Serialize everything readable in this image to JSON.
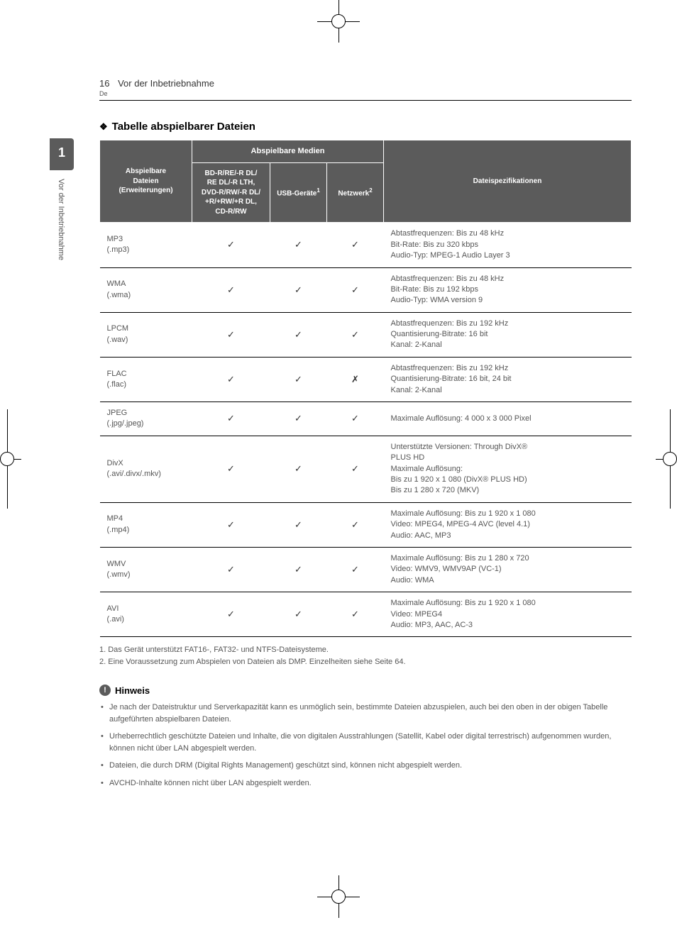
{
  "page": {
    "number": "16",
    "title": "Vor der Inbetriebnahme",
    "lang": "De"
  },
  "sidetab": {
    "number": "1",
    "label": "Vor der Inbetriebnahme"
  },
  "section": {
    "diamond": "❖",
    "title": "Tabelle abspielbarer Dateien"
  },
  "table": {
    "headers": {
      "col1_l1": "Abspielbare",
      "col1_l2": "Dateien",
      "col1_l3": "(Erweiterungen)",
      "group": "Abspielbare Medien",
      "disc_l1": "BD-R/RE/-R DL/",
      "disc_l2": "RE DL/-R LTH,",
      "disc_l3": "DVD-R/RW/-R DL/",
      "disc_l4": "+R/+RW/+R DL,",
      "disc_l5": "CD-R/RW",
      "usb": "USB-Geräte",
      "usb_sup": "1",
      "net": "Netzwerk",
      "net_sup": "2",
      "spec": "Dateispezifikationen"
    },
    "marks": {
      "yes": "✓",
      "no": "✗"
    },
    "rows": [
      {
        "name_l1": "MP3",
        "name_l2": "(.mp3)",
        "disc": "✓",
        "usb": "✓",
        "net": "✓",
        "spec_l1": "Abtastfrequenzen: Bis zu 48 kHz",
        "spec_l2": "Bit-Rate: Bis zu 320 kbps",
        "spec_l3": "Audio-Typ: MPEG-1 Audio Layer 3"
      },
      {
        "name_l1": "WMA",
        "name_l2": "(.wma)",
        "disc": "✓",
        "usb": "✓",
        "net": "✓",
        "spec_l1": "Abtastfrequenzen: Bis zu 48 kHz",
        "spec_l2": "Bit-Rate: Bis zu 192 kbps",
        "spec_l3": "Audio-Typ: WMA version 9"
      },
      {
        "name_l1": "LPCM",
        "name_l2": "(.wav)",
        "disc": "✓",
        "usb": "✓",
        "net": "✓",
        "spec_l1": "Abtastfrequenzen: Bis zu 192 kHz",
        "spec_l2": "Quantisierung-Bitrate: 16 bit",
        "spec_l3": "Kanal: 2-Kanal"
      },
      {
        "name_l1": "FLAC",
        "name_l2": "(.flac)",
        "disc": "✓",
        "usb": "✓",
        "net": "✗",
        "spec_l1": "Abtastfrequenzen: Bis zu 192 kHz",
        "spec_l2": "Quantisierung-Bitrate: 16 bit, 24 bit",
        "spec_l3": "Kanal: 2-Kanal"
      },
      {
        "name_l1": "JPEG",
        "name_l2": "(.jpg/.jpeg)",
        "disc": "✓",
        "usb": "✓",
        "net": "✓",
        "spec_l1": "Maximale Auflösung: 4 000 x 3 000 Pixel",
        "spec_l2": "",
        "spec_l3": ""
      },
      {
        "name_l1": "DivX",
        "name_l2": "(.avi/.divx/.mkv)",
        "disc": "✓",
        "usb": "✓",
        "net": "✓",
        "spec_l1": "Unterstützte Versionen: Through DivX®",
        "spec_l2": "PLUS HD",
        "spec_l3": "Maximale Auflösung:",
        "spec_l4": "Bis zu 1 920 x 1 080 (DivX® PLUS HD)",
        "spec_l5": "Bis zu 1 280 x 720 (MKV)"
      },
      {
        "name_l1": "MP4",
        "name_l2": "(.mp4)",
        "disc": "✓",
        "usb": "✓",
        "net": "✓",
        "spec_l1": "Maximale Auflösung: Bis zu 1 920 x 1 080",
        "spec_l2": "Video: MPEG4, MPEG-4 AVC (level 4.1)",
        "spec_l3": "Audio: AAC, MP3"
      },
      {
        "name_l1": "WMV",
        "name_l2": "(.wmv)",
        "disc": "✓",
        "usb": "✓",
        "net": "✓",
        "spec_l1": "Maximale Auflösung: Bis zu 1 280 x 720",
        "spec_l2": "Video: WMV9, WMV9AP (VC-1)",
        "spec_l3": "Audio: WMA"
      },
      {
        "name_l1": "AVI",
        "name_l2": "(.avi)",
        "disc": "✓",
        "usb": "✓",
        "net": "✓",
        "spec_l1": "Maximale Auflösung: Bis zu 1 920 x 1 080",
        "spec_l2": "Video: MPEG4",
        "spec_l3": "Audio: MP3, AAC, AC-3"
      }
    ]
  },
  "footnotes": {
    "f1": "1. Das Gerät unterstützt FAT16-, FAT32- und NTFS-Dateisysteme.",
    "f2": "2. Eine Voraussetzung zum Abspielen von Dateien als DMP. Einzelheiten siehe Seite 64."
  },
  "hinweis": {
    "icon": "!",
    "label": "Hinweis",
    "items": [
      "Je nach der Dateistruktur und Serverkapazität kann es unmöglich sein, bestimmte Dateien abzuspielen, auch bei den oben in der obigen Tabelle aufgeführten abspielbaren Dateien.",
      "Urheberrechtlich geschützte Dateien und Inhalte, die von digitalen Ausstrahlungen (Satellit, Kabel oder digital terrestrisch) aufgenommen wurden, können nicht über LAN abgespielt werden.",
      "Dateien, die durch DRM (Digital Rights Management) geschützt sind, können nicht abgespielt werden.",
      "AVCHD-Inhalte können nicht über LAN abgespielt werden."
    ]
  }
}
